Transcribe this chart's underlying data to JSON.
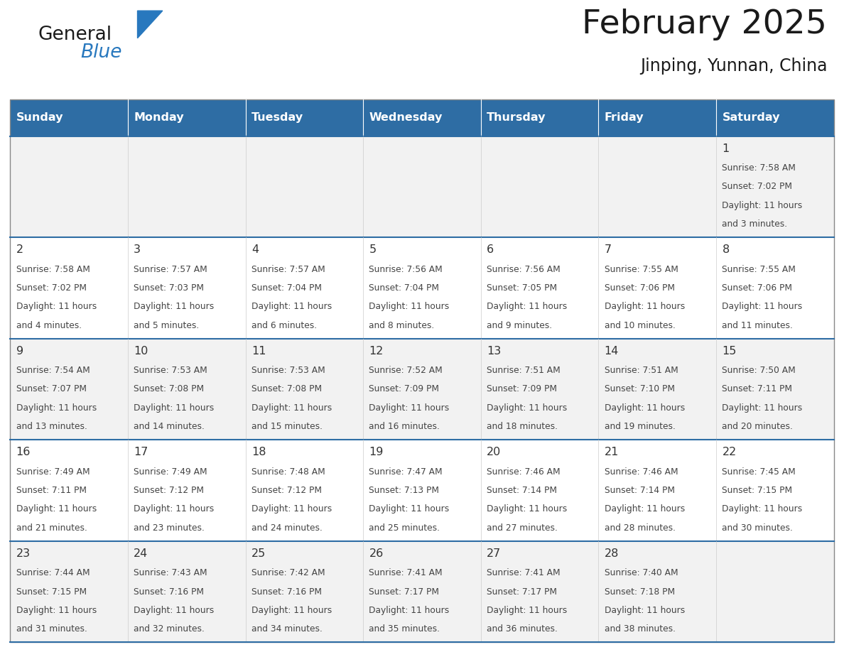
{
  "title": "February 2025",
  "subtitle": "Jinping, Yunnan, China",
  "days_of_week": [
    "Sunday",
    "Monday",
    "Tuesday",
    "Wednesday",
    "Thursday",
    "Friday",
    "Saturday"
  ],
  "header_bg": "#2E6DA4",
  "header_text": "#FFFFFF",
  "cell_bg_white": "#FFFFFF",
  "cell_bg_gray": "#F2F2F2",
  "border_color": "#AAAAAA",
  "row_border_color": "#2E6DA4",
  "day_num_color": "#333333",
  "text_color": "#444444",
  "title_color": "#1A1A1A",
  "logo_general_color": "#1A1A1A",
  "logo_blue_color": "#2878BE",
  "calendar_data": [
    [
      null,
      null,
      null,
      null,
      null,
      null,
      {
        "day": 1,
        "sunrise": "7:58 AM",
        "sunset": "7:02 PM",
        "daylight": "11 hours and 3 minutes."
      }
    ],
    [
      {
        "day": 2,
        "sunrise": "7:58 AM",
        "sunset": "7:02 PM",
        "daylight": "11 hours and 4 minutes."
      },
      {
        "day": 3,
        "sunrise": "7:57 AM",
        "sunset": "7:03 PM",
        "daylight": "11 hours and 5 minutes."
      },
      {
        "day": 4,
        "sunrise": "7:57 AM",
        "sunset": "7:04 PM",
        "daylight": "11 hours and 6 minutes."
      },
      {
        "day": 5,
        "sunrise": "7:56 AM",
        "sunset": "7:04 PM",
        "daylight": "11 hours and 8 minutes."
      },
      {
        "day": 6,
        "sunrise": "7:56 AM",
        "sunset": "7:05 PM",
        "daylight": "11 hours and 9 minutes."
      },
      {
        "day": 7,
        "sunrise": "7:55 AM",
        "sunset": "7:06 PM",
        "daylight": "11 hours and 10 minutes."
      },
      {
        "day": 8,
        "sunrise": "7:55 AM",
        "sunset": "7:06 PM",
        "daylight": "11 hours and 11 minutes."
      }
    ],
    [
      {
        "day": 9,
        "sunrise": "7:54 AM",
        "sunset": "7:07 PM",
        "daylight": "11 hours and 13 minutes."
      },
      {
        "day": 10,
        "sunrise": "7:53 AM",
        "sunset": "7:08 PM",
        "daylight": "11 hours and 14 minutes."
      },
      {
        "day": 11,
        "sunrise": "7:53 AM",
        "sunset": "7:08 PM",
        "daylight": "11 hours and 15 minutes."
      },
      {
        "day": 12,
        "sunrise": "7:52 AM",
        "sunset": "7:09 PM",
        "daylight": "11 hours and 16 minutes."
      },
      {
        "day": 13,
        "sunrise": "7:51 AM",
        "sunset": "7:09 PM",
        "daylight": "11 hours and 18 minutes."
      },
      {
        "day": 14,
        "sunrise": "7:51 AM",
        "sunset": "7:10 PM",
        "daylight": "11 hours and 19 minutes."
      },
      {
        "day": 15,
        "sunrise": "7:50 AM",
        "sunset": "7:11 PM",
        "daylight": "11 hours and 20 minutes."
      }
    ],
    [
      {
        "day": 16,
        "sunrise": "7:49 AM",
        "sunset": "7:11 PM",
        "daylight": "11 hours and 21 minutes."
      },
      {
        "day": 17,
        "sunrise": "7:49 AM",
        "sunset": "7:12 PM",
        "daylight": "11 hours and 23 minutes."
      },
      {
        "day": 18,
        "sunrise": "7:48 AM",
        "sunset": "7:12 PM",
        "daylight": "11 hours and 24 minutes."
      },
      {
        "day": 19,
        "sunrise": "7:47 AM",
        "sunset": "7:13 PM",
        "daylight": "11 hours and 25 minutes."
      },
      {
        "day": 20,
        "sunrise": "7:46 AM",
        "sunset": "7:14 PM",
        "daylight": "11 hours and 27 minutes."
      },
      {
        "day": 21,
        "sunrise": "7:46 AM",
        "sunset": "7:14 PM",
        "daylight": "11 hours and 28 minutes."
      },
      {
        "day": 22,
        "sunrise": "7:45 AM",
        "sunset": "7:15 PM",
        "daylight": "11 hours and 30 minutes."
      }
    ],
    [
      {
        "day": 23,
        "sunrise": "7:44 AM",
        "sunset": "7:15 PM",
        "daylight": "11 hours and 31 minutes."
      },
      {
        "day": 24,
        "sunrise": "7:43 AM",
        "sunset": "7:16 PM",
        "daylight": "11 hours and 32 minutes."
      },
      {
        "day": 25,
        "sunrise": "7:42 AM",
        "sunset": "7:16 PM",
        "daylight": "11 hours and 34 minutes."
      },
      {
        "day": 26,
        "sunrise": "7:41 AM",
        "sunset": "7:17 PM",
        "daylight": "11 hours and 35 minutes."
      },
      {
        "day": 27,
        "sunrise": "7:41 AM",
        "sunset": "7:17 PM",
        "daylight": "11 hours and 36 minutes."
      },
      {
        "day": 28,
        "sunrise": "7:40 AM",
        "sunset": "7:18 PM",
        "daylight": "11 hours and 38 minutes."
      },
      null
    ]
  ],
  "row_bg_colors": [
    "#F2F2F2",
    "#FFFFFF",
    "#F2F2F2",
    "#FFFFFF",
    "#F2F2F2"
  ],
  "figsize": [
    11.88,
    9.18
  ],
  "dpi": 100
}
